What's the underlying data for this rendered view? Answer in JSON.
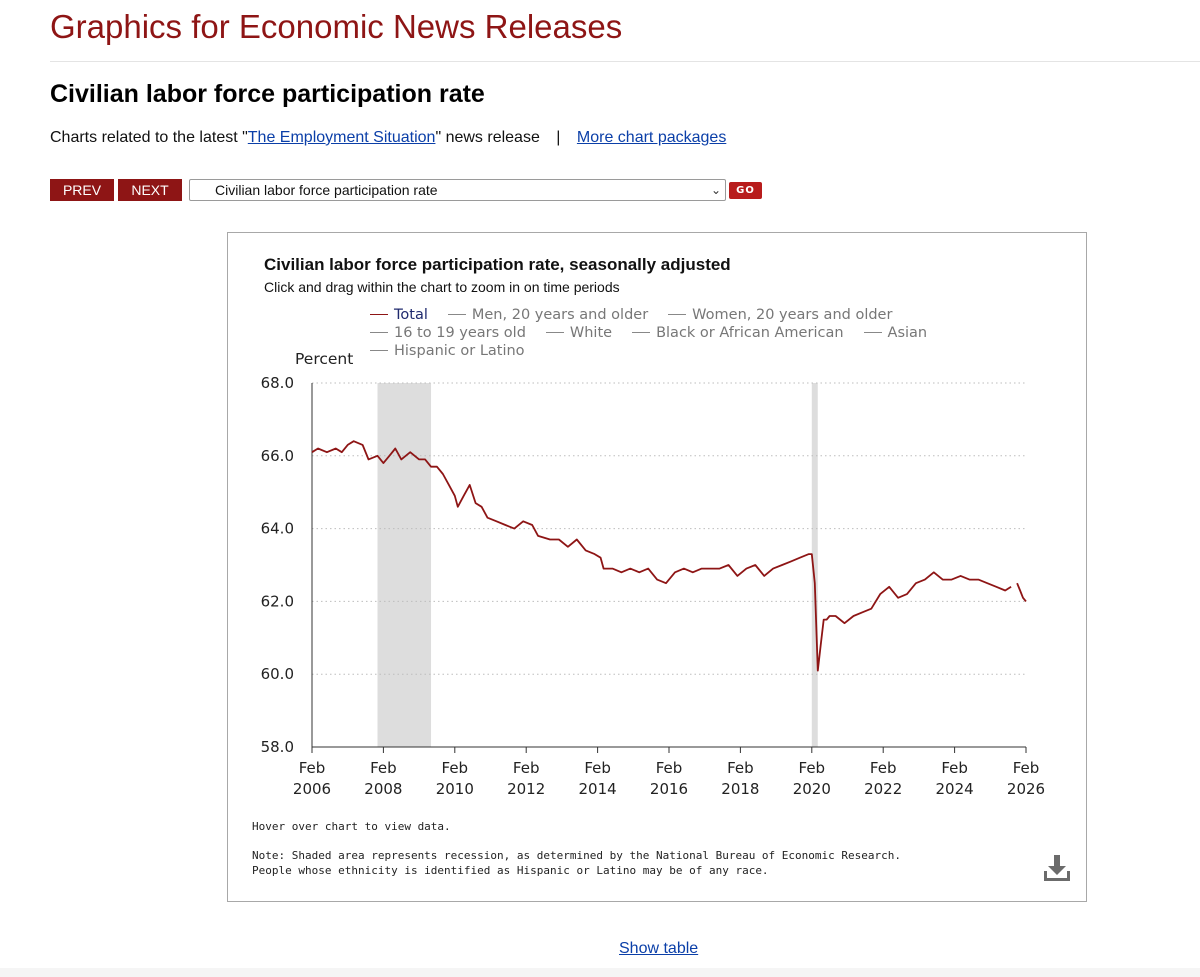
{
  "header": {
    "site_title": "Graphics for Economic News Releases"
  },
  "page": {
    "title": "Civilian labor force participation rate",
    "related_prefix": "Charts related to the latest \"",
    "related_link": "The Employment Situation",
    "related_suffix": "\" news release",
    "separator": "|",
    "more_link": "More chart packages"
  },
  "nav": {
    "prev_label": "PREV",
    "next_label": "NEXT",
    "selected_chart": "Civilian labor force participation rate",
    "go_label": "GO"
  },
  "chart_panel": {
    "hover_note": "Hover over chart to view data.",
    "note_line1": "Note: Shaded area represents recession, as determined by the National Bureau of Economic Research.",
    "note_line2": "People whose ethnicity is identified as Hispanic or Latino may be of any race.",
    "download_icon": "download-icon"
  },
  "show_table_label": "Show table",
  "colors": {
    "brand": "#8e1515",
    "series_total": "#8e1515",
    "recession_shade": "#dddddd",
    "link": "#0b3fa8"
  },
  "chart_data": {
    "type": "line",
    "title": "Civilian labor force participation rate, seasonally adjusted",
    "subtitle": "Click and drag within the chart to zoom in on time periods",
    "ylabel": "Percent",
    "ylim": [
      58.0,
      68.0
    ],
    "y_ticks": [
      "58.0",
      "60.0",
      "62.0",
      "64.0",
      "66.0",
      "68.0"
    ],
    "y_tick_values": [
      58.0,
      60.0,
      62.0,
      64.0,
      66.0,
      68.0
    ],
    "x_range": [
      2006.083,
      2026.083
    ],
    "x_ticks": [
      {
        "month": "Feb",
        "year": "2006",
        "value": 2006.083
      },
      {
        "month": "Feb",
        "year": "2008",
        "value": 2008.083
      },
      {
        "month": "Feb",
        "year": "2010",
        "value": 2010.083
      },
      {
        "month": "Feb",
        "year": "2012",
        "value": 2012.083
      },
      {
        "month": "Feb",
        "year": "2014",
        "value": 2014.083
      },
      {
        "month": "Feb",
        "year": "2016",
        "value": 2016.083
      },
      {
        "month": "Feb",
        "year": "2018",
        "value": 2018.083
      },
      {
        "month": "Feb",
        "year": "2020",
        "value": 2020.083
      },
      {
        "month": "Feb",
        "year": "2022",
        "value": 2022.083
      },
      {
        "month": "Feb",
        "year": "2024",
        "value": 2024.083
      },
      {
        "month": "Feb",
        "year": "2026",
        "value": 2026.083
      }
    ],
    "recessions": [
      {
        "start": 2007.917,
        "end": 2009.417
      },
      {
        "start": 2020.083,
        "end": 2020.25
      }
    ],
    "legend": [
      {
        "label": "Total",
        "active": true
      },
      {
        "label": "Men, 20 years and older",
        "active": false
      },
      {
        "label": "Women, 20 years and older",
        "active": false
      },
      {
        "label": "16 to 19 years old",
        "active": false
      },
      {
        "label": "White",
        "active": false
      },
      {
        "label": "Black or African American",
        "active": false
      },
      {
        "label": "Asian",
        "active": false
      },
      {
        "label": "Hispanic or Latino",
        "active": false
      }
    ],
    "series": [
      {
        "name": "Total",
        "points": [
          [
            2006.083,
            66.1
          ],
          [
            2006.25,
            66.2
          ],
          [
            2006.5,
            66.1
          ],
          [
            2006.75,
            66.2
          ],
          [
            2006.917,
            66.1
          ],
          [
            2007.083,
            66.3
          ],
          [
            2007.25,
            66.4
          ],
          [
            2007.5,
            66.3
          ],
          [
            2007.667,
            65.9
          ],
          [
            2007.917,
            66.0
          ],
          [
            2008.083,
            65.8
          ],
          [
            2008.25,
            66.0
          ],
          [
            2008.417,
            66.2
          ],
          [
            2008.583,
            65.9
          ],
          [
            2008.833,
            66.1
          ],
          [
            2009.083,
            65.9
          ],
          [
            2009.25,
            65.9
          ],
          [
            2009.417,
            65.7
          ],
          [
            2009.583,
            65.7
          ],
          [
            2009.75,
            65.5
          ],
          [
            2009.917,
            65.2
          ],
          [
            2010.083,
            64.9
          ],
          [
            2010.167,
            64.6
          ],
          [
            2010.333,
            64.9
          ],
          [
            2010.5,
            65.2
          ],
          [
            2010.667,
            64.7
          ],
          [
            2010.833,
            64.6
          ],
          [
            2011.0,
            64.3
          ],
          [
            2011.25,
            64.2
          ],
          [
            2011.5,
            64.1
          ],
          [
            2011.75,
            64.0
          ],
          [
            2012.0,
            64.2
          ],
          [
            2012.25,
            64.1
          ],
          [
            2012.417,
            63.8
          ],
          [
            2012.75,
            63.7
          ],
          [
            2013.0,
            63.7
          ],
          [
            2013.25,
            63.5
          ],
          [
            2013.5,
            63.7
          ],
          [
            2013.75,
            63.4
          ],
          [
            2014.0,
            63.3
          ],
          [
            2014.167,
            63.2
          ],
          [
            2014.25,
            62.9
          ],
          [
            2014.5,
            62.9
          ],
          [
            2014.75,
            62.8
          ],
          [
            2015.0,
            62.9
          ],
          [
            2015.25,
            62.8
          ],
          [
            2015.5,
            62.9
          ],
          [
            2015.75,
            62.6
          ],
          [
            2016.0,
            62.5
          ],
          [
            2016.25,
            62.8
          ],
          [
            2016.5,
            62.9
          ],
          [
            2016.75,
            62.8
          ],
          [
            2017.0,
            62.9
          ],
          [
            2017.25,
            62.9
          ],
          [
            2017.5,
            62.9
          ],
          [
            2017.75,
            63.0
          ],
          [
            2018.0,
            62.7
          ],
          [
            2018.25,
            62.9
          ],
          [
            2018.5,
            63.0
          ],
          [
            2018.75,
            62.7
          ],
          [
            2019.0,
            62.9
          ],
          [
            2019.25,
            63.0
          ],
          [
            2019.5,
            63.1
          ],
          [
            2019.75,
            63.2
          ],
          [
            2020.0,
            63.3
          ],
          [
            2020.083,
            63.3
          ],
          [
            2020.167,
            62.5
          ],
          [
            2020.25,
            60.1
          ],
          [
            2020.333,
            60.8
          ],
          [
            2020.417,
            61.5
          ],
          [
            2020.5,
            61.5
          ],
          [
            2020.583,
            61.6
          ],
          [
            2020.75,
            61.6
          ],
          [
            2021.0,
            61.4
          ],
          [
            2021.25,
            61.6
          ],
          [
            2021.5,
            61.7
          ],
          [
            2021.75,
            61.8
          ],
          [
            2022.0,
            62.2
          ],
          [
            2022.25,
            62.4
          ],
          [
            2022.5,
            62.1
          ],
          [
            2022.75,
            62.2
          ],
          [
            2023.0,
            62.5
          ],
          [
            2023.25,
            62.6
          ],
          [
            2023.5,
            62.8
          ],
          [
            2023.75,
            62.6
          ],
          [
            2024.0,
            62.6
          ],
          [
            2024.25,
            62.7
          ],
          [
            2024.5,
            62.6
          ],
          [
            2024.75,
            62.6
          ],
          [
            2025.0,
            62.5
          ],
          [
            2025.25,
            62.4
          ],
          [
            2025.5,
            62.3
          ],
          [
            2025.667,
            62.4
          ],
          null,
          [
            2025.833,
            62.5
          ],
          [
            2025.917,
            62.3
          ],
          [
            2026.0,
            62.1
          ],
          [
            2026.083,
            62.0
          ]
        ]
      }
    ]
  }
}
